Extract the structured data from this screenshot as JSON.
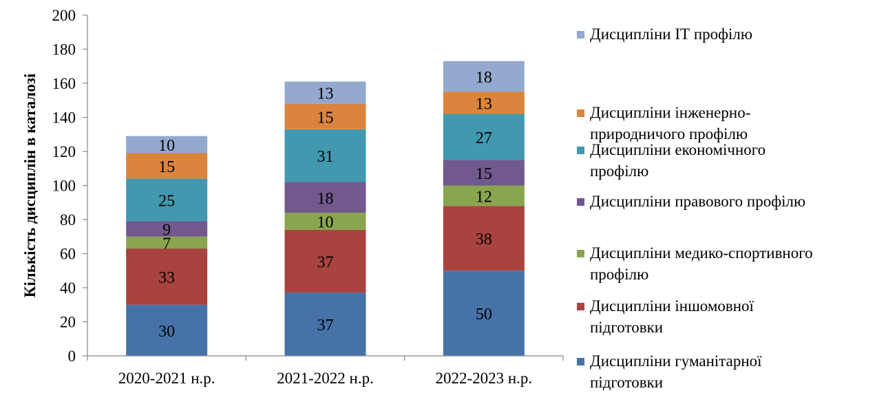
{
  "chart_data": {
    "type": "bar",
    "stacked": true,
    "title": "",
    "xlabel": "",
    "ylabel": "Кількість дисциплін в каталозі",
    "ylim": [
      0,
      200
    ],
    "yticks": [
      "0",
      "20",
      "40",
      "60",
      "80",
      "100",
      "120",
      "140",
      "160",
      "180",
      "200"
    ],
    "grid": false,
    "legend_position": "right",
    "categories": [
      "2020-2021 н.р.",
      "2021-2022 н.р.",
      "2022-2023 н.р."
    ],
    "series": [
      {
        "name": "Дисципліни гуманітарної підготовки",
        "color": "#4672A8",
        "values": [
          30,
          37,
          50
        ]
      },
      {
        "name": "Дисципліни іншомовної підготовки",
        "color": "#A9433F",
        "values": [
          33,
          37,
          38
        ]
      },
      {
        "name": "Дисципліни медико-спортивного профілю",
        "color": "#89A54E",
        "values": [
          7,
          10,
          12
        ]
      },
      {
        "name": "Дисципліни правового профілю",
        "color": "#71588F",
        "values": [
          9,
          18,
          15
        ]
      },
      {
        "name": "Дисципліни економічного профілю",
        "color": "#4198AF",
        "values": [
          25,
          31,
          27
        ]
      },
      {
        "name": "Дисципліни інженерно-природничого профілю",
        "color": "#DB843D",
        "values": [
          15,
          15,
          13
        ]
      },
      {
        "name": "Дисципліни ІТ профілю",
        "color": "#93A9CF",
        "values": [
          10,
          13,
          18
        ]
      }
    ],
    "legend": [
      {
        "lines": [
          "Дисципліни ІТ профілю"
        ],
        "color": "#93A9CF"
      },
      {
        "lines": [
          "Дисципліни інженерно-",
          "природничого профілю"
        ],
        "color": "#DB843D"
      },
      {
        "lines": [
          "Дисципліни економічного",
          "профілю"
        ],
        "color": "#4198AF"
      },
      {
        "lines": [
          "Дисципліни правового профілю"
        ],
        "color": "#71588F"
      },
      {
        "lines": [
          "Дисципліни медико-спортивного",
          "профілю"
        ],
        "color": "#89A54E"
      },
      {
        "lines": [
          "Дисципліни іншомовної",
          "підготовки"
        ],
        "color": "#A9433F"
      },
      {
        "lines": [
          "Дисципліни гуманітарної",
          "підготовки"
        ],
        "color": "#4672A8"
      }
    ]
  }
}
